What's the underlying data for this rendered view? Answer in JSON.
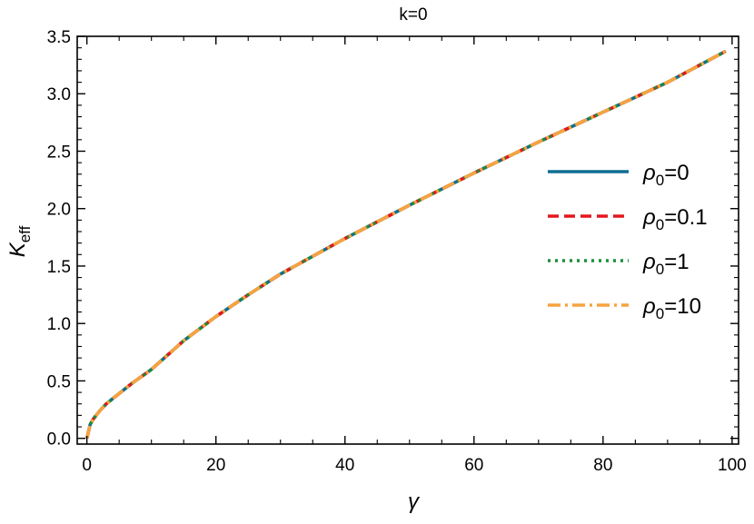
{
  "chart_data": {
    "type": "line",
    "title": "k=0",
    "xlabel": "γ",
    "ylabel": {
      "main": "K",
      "sub": "eff"
    },
    "xlim": [
      -1.5,
      101
    ],
    "ylim": [
      -0.05,
      3.5
    ],
    "xticks": [
      0,
      20,
      40,
      60,
      80,
      100
    ],
    "xtick_labels": [
      "0",
      "20",
      "40",
      "60",
      "80",
      "100"
    ],
    "yticks": [
      0.0,
      0.5,
      1.0,
      1.5,
      2.0,
      2.5,
      3.0,
      3.5
    ],
    "ytick_labels": [
      "0.0",
      "0.5",
      "1.0",
      "1.5",
      "2.0",
      "2.5",
      "3.0",
      "3.5"
    ],
    "grid": false,
    "legend_position": "right",
    "x": [
      0,
      0.5,
      1,
      2,
      3,
      5,
      7,
      10,
      15,
      20,
      25,
      30,
      40,
      50,
      60,
      70,
      80,
      90,
      99
    ],
    "series": [
      {
        "name": {
          "main": "ρ",
          "sub": "0",
          "tail": "=0"
        },
        "color": "#0f6e94",
        "dash": "solid",
        "values": [
          0.0,
          0.12,
          0.17,
          0.24,
          0.3,
          0.39,
          0.48,
          0.6,
          0.85,
          1.06,
          1.25,
          1.43,
          1.74,
          2.03,
          2.31,
          2.58,
          2.84,
          3.1,
          3.37
        ]
      },
      {
        "name": {
          "main": "ρ",
          "sub": "0",
          "tail": "=0.1"
        },
        "color": "#e4161c",
        "dash": "dashed",
        "values": [
          0.0,
          0.12,
          0.17,
          0.24,
          0.3,
          0.39,
          0.48,
          0.6,
          0.85,
          1.06,
          1.25,
          1.43,
          1.74,
          2.03,
          2.31,
          2.58,
          2.84,
          3.1,
          3.37
        ]
      },
      {
        "name": {
          "main": "ρ",
          "sub": "0",
          "tail": "=1"
        },
        "color": "#1a8f3c",
        "dash": "dotted",
        "values": [
          0.0,
          0.12,
          0.17,
          0.24,
          0.3,
          0.39,
          0.48,
          0.6,
          0.85,
          1.06,
          1.25,
          1.43,
          1.74,
          2.03,
          2.31,
          2.58,
          2.84,
          3.1,
          3.37
        ]
      },
      {
        "name": {
          "main": "ρ",
          "sub": "0",
          "tail": "=10"
        },
        "color": "#f7a340",
        "dash": "dashdot",
        "values": [
          0.0,
          0.12,
          0.17,
          0.24,
          0.3,
          0.39,
          0.48,
          0.6,
          0.85,
          1.06,
          1.25,
          1.43,
          1.74,
          2.03,
          2.31,
          2.58,
          2.84,
          3.1,
          3.37
        ]
      }
    ]
  }
}
